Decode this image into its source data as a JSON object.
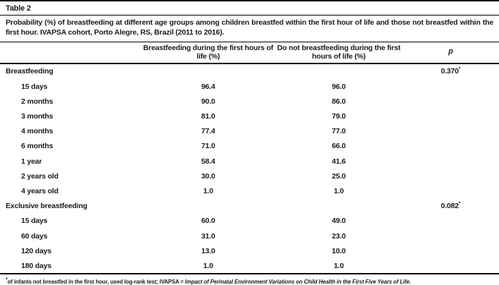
{
  "table": {
    "label": "Table 2",
    "caption": "Probability (%) of breastfeeding at different age groups among children breastfed within the first hour of life and those not breastfed within the first hour. IVAPSA cohort, Porto Alegre, RS, Brazil (2011 to 2016).",
    "columns": {
      "breastfed": "Breastfeeding during the first hours of life (%)",
      "not_breastfed": "Do not breastfeeding during the first hours of life (%)",
      "p": "p"
    },
    "sections": [
      {
        "title": "Breastfeeding",
        "p_value": "0.370",
        "p_marker": "*",
        "rows": [
          {
            "label": "15 days",
            "breastfed": "96.4",
            "not_breastfed": "96.0"
          },
          {
            "label": "2 months",
            "breastfed": "90.0",
            "not_breastfed": "86.0"
          },
          {
            "label": "3 months",
            "breastfed": "81.0",
            "not_breastfed": "79.0"
          },
          {
            "label": "4 months",
            "breastfed": "77.4",
            "not_breastfed": "77.0"
          },
          {
            "label": "6 months",
            "breastfed": "71.0",
            "not_breastfed": "66.0"
          },
          {
            "label": "1 year",
            "breastfed": "58.4",
            "not_breastfed": "41.6"
          },
          {
            "label": "2 years old",
            "breastfed": "30.0",
            "not_breastfed": "25.0"
          },
          {
            "label": "4 years old",
            "breastfed": "1.0",
            "not_breastfed": "1.0"
          }
        ]
      },
      {
        "title": "Exclusive breastfeeding",
        "p_value": "0.082",
        "p_marker": "*",
        "rows": [
          {
            "label": "15 days",
            "breastfed": "60.0",
            "not_breastfed": "49.0"
          },
          {
            "label": "60 days",
            "breastfed": "31.0",
            "not_breastfed": "23.0"
          },
          {
            "label": "120 days",
            "breastfed": "13.0",
            "not_breastfed": "10.0"
          },
          {
            "label": "180 days",
            "breastfed": "1.0",
            "not_breastfed": "1.0"
          }
        ]
      }
    ],
    "footnote": {
      "marker": "*",
      "text": "of infants not breastfed in the first hour, used log-rank test; IVAPSA = ",
      "italic": "Impact of Perinatal Environment Variations on Child Health in the First Five Years of Life."
    }
  }
}
